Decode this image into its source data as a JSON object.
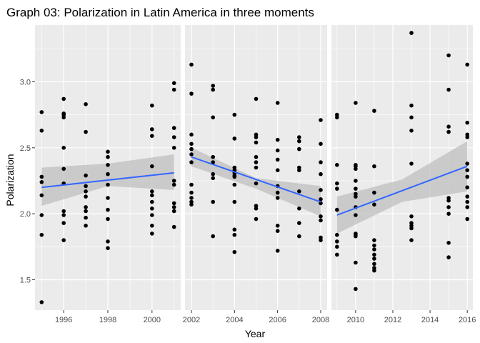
{
  "chart_data": {
    "type": "scatter",
    "title": "Graph 03: Polarization in Latin America in three moments",
    "xlabel": "Year",
    "ylabel": "Polarization",
    "ylim": [
      1.27,
      3.43
    ],
    "y_ticks": [
      1.5,
      2.0,
      2.5,
      3.0
    ],
    "y_tick_labels": [
      "1.5",
      "2.0",
      "2.5",
      "3.0"
    ],
    "grid": true,
    "legend": "none",
    "colors": {
      "panel_bg": "#ebebeb",
      "grid": "#ffffff",
      "points": "#000000",
      "fit_line": "#3366ff",
      "ci_band": "#bfbfbf"
    },
    "panels": [
      {
        "xlim": [
          1994.7,
          2001.3
        ],
        "x_ticks": [
          1996,
          1998,
          2000
        ],
        "x_tick_labels": [
          "1996",
          "1998",
          "2000"
        ],
        "fit": {
          "x": [
            1995,
            2001
          ],
          "y": [
            2.2,
            2.31
          ]
        },
        "ci": {
          "upper": [
            2.35,
            2.38,
            2.45
          ],
          "lower": [
            2.06,
            2.21,
            2.18
          ]
        },
        "points": [
          [
            1995,
            2.77
          ],
          [
            1995,
            2.63
          ],
          [
            1995,
            2.28
          ],
          [
            1995,
            2.24
          ],
          [
            1995,
            2.14
          ],
          [
            1995,
            1.99
          ],
          [
            1995,
            1.84
          ],
          [
            1995,
            1.33
          ],
          [
            1996,
            2.87
          ],
          [
            1996,
            2.76
          ],
          [
            1996,
            2.75
          ],
          [
            1996,
            2.73
          ],
          [
            1996,
            2.5
          ],
          [
            1996,
            2.34
          ],
          [
            1996,
            2.23
          ],
          [
            1996,
            2.02
          ],
          [
            1996,
            1.99
          ],
          [
            1996,
            1.93
          ],
          [
            1996,
            1.8
          ],
          [
            1997,
            2.83
          ],
          [
            1997,
            2.62
          ],
          [
            1997,
            2.29
          ],
          [
            1997,
            2.21
          ],
          [
            1997,
            2.17
          ],
          [
            1997,
            2.13
          ],
          [
            1997,
            2.05
          ],
          [
            1997,
            2.02
          ],
          [
            1997,
            1.97
          ],
          [
            1997,
            1.91
          ],
          [
            1998,
            2.47
          ],
          [
            1998,
            2.43
          ],
          [
            1998,
            2.37
          ],
          [
            1998,
            2.3
          ],
          [
            1998,
            2.22
          ],
          [
            1998,
            2.12
          ],
          [
            1998,
            2.03
          ],
          [
            1998,
            1.96
          ],
          [
            1998,
            1.79
          ],
          [
            1998,
            1.74
          ],
          [
            2000,
            2.82
          ],
          [
            2000,
            2.64
          ],
          [
            2000,
            2.59
          ],
          [
            2000,
            2.36
          ],
          [
            2000,
            2.17
          ],
          [
            2000,
            2.14
          ],
          [
            2000,
            2.09
          ],
          [
            2000,
            2.04
          ],
          [
            2000,
            1.99
          ],
          [
            2000,
            1.91
          ],
          [
            2000,
            1.85
          ],
          [
            2001,
            2.99
          ],
          [
            2001,
            2.94
          ],
          [
            2001,
            2.65
          ],
          [
            2001,
            2.58
          ],
          [
            2001,
            2.5
          ],
          [
            2001,
            2.25
          ],
          [
            2001,
            2.22
          ],
          [
            2001,
            2.08
          ],
          [
            2001,
            2.05
          ],
          [
            2001,
            2.02
          ],
          [
            2001,
            1.9
          ]
        ]
      },
      {
        "xlim": [
          2001.7,
          2008.3
        ],
        "x_ticks": [
          2002,
          2004,
          2006,
          2008
        ],
        "x_tick_labels": [
          "2002",
          "2004",
          "2006",
          "2008"
        ],
        "fit": {
          "x": [
            2002,
            2008
          ],
          "y": [
            2.43,
            2.09
          ]
        },
        "ci": {
          "upper": [
            2.5,
            2.27,
            2.21
          ],
          "lower": [
            2.36,
            2.19,
            1.98
          ]
        },
        "points": [
          [
            2002,
            3.13
          ],
          [
            2002,
            2.91
          ],
          [
            2002,
            2.6
          ],
          [
            2002,
            2.53
          ],
          [
            2002,
            2.49
          ],
          [
            2002,
            2.45
          ],
          [
            2002,
            2.39
          ],
          [
            2002,
            2.22
          ],
          [
            2002,
            2.16
          ],
          [
            2002,
            2.12
          ],
          [
            2002,
            2.09
          ],
          [
            2002,
            2.07
          ],
          [
            2003,
            2.97
          ],
          [
            2003,
            2.94
          ],
          [
            2003,
            2.73
          ],
          [
            2003,
            2.43
          ],
          [
            2003,
            2.39
          ],
          [
            2003,
            2.3
          ],
          [
            2003,
            2.27
          ],
          [
            2003,
            2.09
          ],
          [
            2003,
            1.83
          ],
          [
            2004,
            2.75
          ],
          [
            2004,
            2.57
          ],
          [
            2004,
            2.35
          ],
          [
            2004,
            2.33
          ],
          [
            2004,
            2.31
          ],
          [
            2004,
            2.29
          ],
          [
            2004,
            2.28
          ],
          [
            2004,
            2.22
          ],
          [
            2004,
            2.09
          ],
          [
            2004,
            1.88
          ],
          [
            2004,
            1.84
          ],
          [
            2004,
            1.71
          ],
          [
            2005,
            2.87
          ],
          [
            2005,
            2.6
          ],
          [
            2005,
            2.58
          ],
          [
            2005,
            2.54
          ],
          [
            2005,
            2.43
          ],
          [
            2005,
            2.39
          ],
          [
            2005,
            2.35
          ],
          [
            2005,
            2.23
          ],
          [
            2005,
            2.06
          ],
          [
            2005,
            2.04
          ],
          [
            2005,
            1.96
          ],
          [
            2006,
            2.84
          ],
          [
            2006,
            2.56
          ],
          [
            2006,
            2.48
          ],
          [
            2006,
            2.41
          ],
          [
            2006,
            2.33
          ],
          [
            2006,
            2.21
          ],
          [
            2006,
            2.16
          ],
          [
            2006,
            2.12
          ],
          [
            2006,
            1.91
          ],
          [
            2006,
            1.87
          ],
          [
            2006,
            1.72
          ],
          [
            2007,
            2.58
          ],
          [
            2007,
            2.55
          ],
          [
            2007,
            2.49
          ],
          [
            2007,
            2.35
          ],
          [
            2007,
            2.33
          ],
          [
            2007,
            2.17
          ],
          [
            2007,
            2.04
          ],
          [
            2007,
            1.93
          ],
          [
            2007,
            1.83
          ],
          [
            2008,
            2.71
          ],
          [
            2008,
            2.53
          ],
          [
            2008,
            2.39
          ],
          [
            2008,
            2.3
          ],
          [
            2008,
            2.18
          ],
          [
            2008,
            2.11
          ],
          [
            2008,
            2.08
          ],
          [
            2008,
            1.98
          ],
          [
            2008,
            1.95
          ],
          [
            2008,
            1.82
          ],
          [
            2008,
            1.8
          ]
        ]
      },
      {
        "xlim": [
          2008.7,
          2016.3
        ],
        "x_ticks": [
          2010,
          2012,
          2014,
          2016
        ],
        "x_tick_labels": [
          "2010",
          "2012",
          "2014",
          "2016"
        ],
        "fit": {
          "x": [
            2009,
            2016
          ],
          "y": [
            1.99,
            2.36
          ]
        },
        "ci": {
          "upper": [
            2.13,
            2.26,
            2.55
          ],
          "lower": [
            1.85,
            2.09,
            2.17
          ]
        },
        "points": [
          [
            2009,
            2.75
          ],
          [
            2009,
            2.73
          ],
          [
            2009,
            2.37
          ],
          [
            2009,
            2.23
          ],
          [
            2009,
            2.19
          ],
          [
            2009,
            2.03
          ],
          [
            2009,
            1.84
          ],
          [
            2009,
            1.79
          ],
          [
            2009,
            1.75
          ],
          [
            2009,
            1.69
          ],
          [
            2010,
            2.84
          ],
          [
            2010,
            2.37
          ],
          [
            2010,
            2.36
          ],
          [
            2010,
            2.34
          ],
          [
            2010,
            2.25
          ],
          [
            2010,
            2.19
          ],
          [
            2010,
            2.15
          ],
          [
            2010,
            2.13
          ],
          [
            2010,
            2.05
          ],
          [
            2010,
            1.99
          ],
          [
            2010,
            1.85
          ],
          [
            2010,
            1.84
          ],
          [
            2010,
            1.83
          ],
          [
            2010,
            1.63
          ],
          [
            2010,
            1.43
          ],
          [
            2011,
            2.78
          ],
          [
            2011,
            2.36
          ],
          [
            2011,
            2.16
          ],
          [
            2011,
            2.07
          ],
          [
            2011,
            1.8
          ],
          [
            2011,
            1.76
          ],
          [
            2011,
            1.73
          ],
          [
            2011,
            1.69
          ],
          [
            2011,
            1.66
          ],
          [
            2011,
            1.62
          ],
          [
            2011,
            1.59
          ],
          [
            2011,
            1.57
          ],
          [
            2013,
            3.37
          ],
          [
            2013,
            2.82
          ],
          [
            2013,
            2.73
          ],
          [
            2013,
            2.63
          ],
          [
            2013,
            2.38
          ],
          [
            2013,
            1.98
          ],
          [
            2013,
            1.93
          ],
          [
            2013,
            1.91
          ],
          [
            2013,
            1.89
          ],
          [
            2013,
            1.8
          ],
          [
            2015,
            3.2
          ],
          [
            2015,
            2.94
          ],
          [
            2015,
            2.66
          ],
          [
            2015,
            2.62
          ],
          [
            2015,
            2.12
          ],
          [
            2015,
            2.1
          ],
          [
            2015,
            2.05
          ],
          [
            2015,
            2.0
          ],
          [
            2015,
            1.78
          ],
          [
            2015,
            1.67
          ],
          [
            2016,
            3.13
          ],
          [
            2016,
            2.69
          ],
          [
            2016,
            2.6
          ],
          [
            2016,
            2.58
          ],
          [
            2016,
            2.38
          ],
          [
            2016,
            2.33
          ],
          [
            2016,
            2.28
          ],
          [
            2016,
            2.2
          ],
          [
            2016,
            2.13
          ],
          [
            2016,
            2.09
          ],
          [
            2016,
            2.05
          ],
          [
            2016,
            1.96
          ]
        ]
      }
    ]
  }
}
